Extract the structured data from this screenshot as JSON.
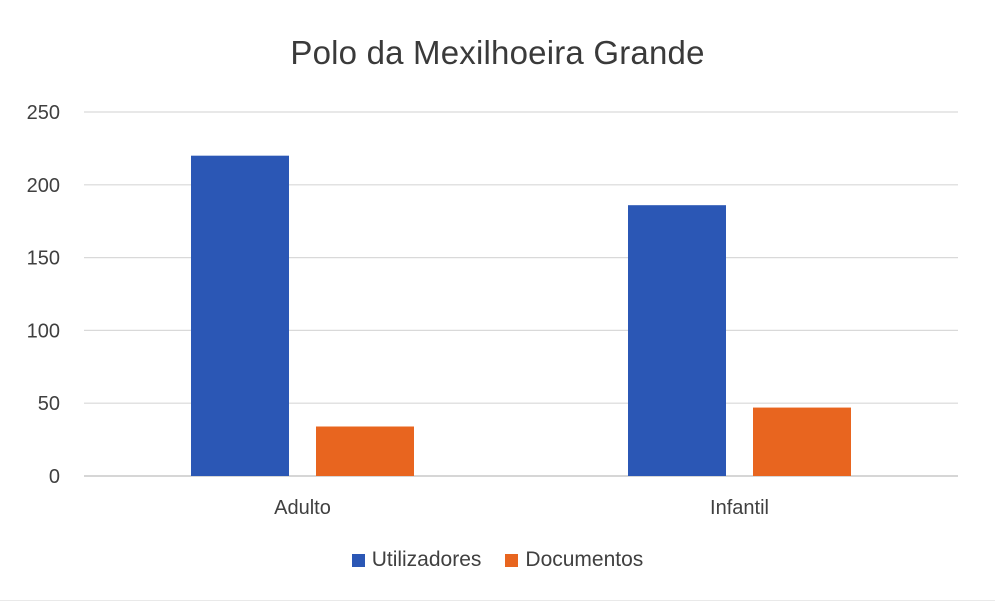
{
  "chart_data": {
    "type": "bar",
    "title": "Polo da Mexilhoeira Grande",
    "xlabel": "",
    "ylabel": "",
    "categories": [
      "Adulto",
      "Infantil"
    ],
    "series": [
      {
        "name": "Utilizadores",
        "values": [
          220,
          186
        ],
        "color": "#2b57b5"
      },
      {
        "name": "Documentos",
        "values": [
          34,
          47
        ],
        "color": "#e8651f"
      }
    ],
    "ylim": [
      0,
      250
    ],
    "yticks": [
      "0",
      "50",
      "100",
      "150",
      "200",
      "250"
    ],
    "grid": true,
    "legend_position": "bottom"
  }
}
